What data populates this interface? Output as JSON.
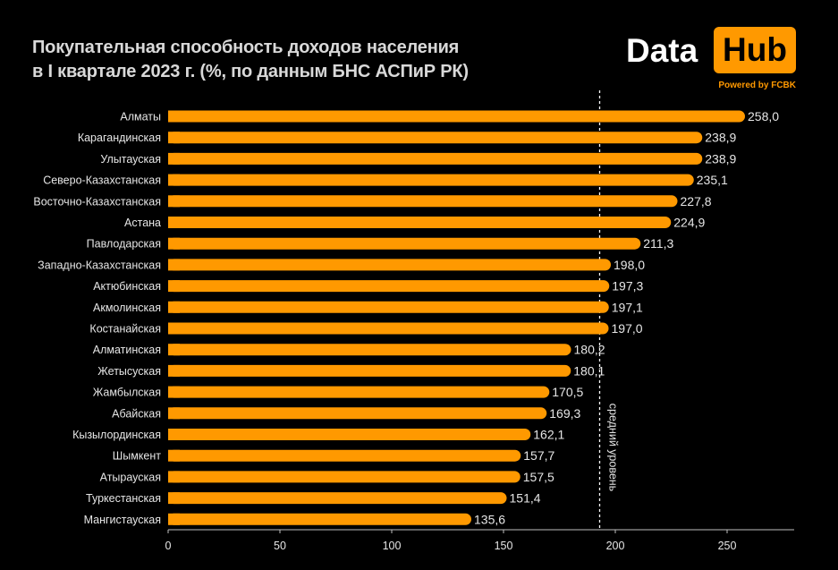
{
  "header": {
    "title_line1": "Покупательная способность доходов населения",
    "title_line2": "в I квартале 2023 г.  (%, по данным БНС АСПиР РК)"
  },
  "logo": {
    "word1": "Data",
    "word2": "Hub",
    "powered": "Powered by FCBK"
  },
  "colors": {
    "bar": "#ff9900",
    "background": "#000000",
    "text": "#e6e6e6"
  },
  "chart_data": {
    "type": "bar",
    "orientation": "horizontal",
    "categories": [
      "Алматы",
      "Карагандинская",
      "Улытауская",
      "Северо-Казахстанская",
      "Восточно-Казахстанская",
      "Астана",
      "Павлодарская",
      "Западно-Казахстанская",
      "Актюбинская",
      "Акмолинская",
      "Костанайская",
      "Алматинская",
      "Жетысуская",
      "Жамбылская",
      "Абайская",
      "Кызылординская",
      "Шымкент",
      "Атырауская",
      "Туркестанская",
      "Мангистауская"
    ],
    "values": [
      258.0,
      238.9,
      238.9,
      235.1,
      227.8,
      224.9,
      211.3,
      198.0,
      197.3,
      197.1,
      197.0,
      180.2,
      180.1,
      170.5,
      169.3,
      162.1,
      157.7,
      157.5,
      151.4,
      135.6
    ],
    "value_labels": [
      "258,0",
      "238,9",
      "238,9",
      "235,1",
      "227,8",
      "224,9",
      "211,3",
      "198,0",
      "197,3",
      "197,1",
      "197,0",
      "180,2",
      "180,1",
      "170,5",
      "169,3",
      "162,1",
      "157,7",
      "157,5",
      "151,4",
      "135,6"
    ],
    "xlim": [
      0,
      280
    ],
    "xticks": [
      0,
      50,
      100,
      150,
      200,
      250
    ],
    "average_line": {
      "value": 193,
      "label": "средний уровень",
      "style": "dashed"
    },
    "grid": false
  }
}
